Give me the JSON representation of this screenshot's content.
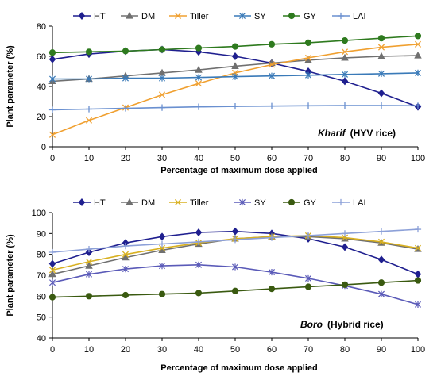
{
  "figure": {
    "colors": {
      "HT": "#1f1f8f",
      "DM": "#707070",
      "Tiller": "#f0a030",
      "SY": "#3a7ab8",
      "GY": "#2e7a1e",
      "LAI": "#6a90d0"
    },
    "colors_b": {
      "HT": "#1f1f8f",
      "DM": "#707070",
      "Tiller": "#d8b020",
      "SY": "#5a5ab8",
      "GY": "#3a5a10",
      "LAI": "#8ca0d8"
    }
  },
  "chart_data": [
    {
      "type": "line",
      "annotation_italic": "Kharif",
      "annotation_rest": "(HYV rice)",
      "xlabel": "Percentage  of maximum dose applied",
      "ylabel": "Plant parameter (%)",
      "x": [
        0,
        10,
        20,
        30,
        40,
        50,
        60,
        70,
        80,
        90,
        100
      ],
      "xticks": [
        "0",
        "10",
        "20",
        "30",
        "40",
        "50",
        "60",
        "70",
        "80",
        "90",
        "100"
      ],
      "ylim": [
        0,
        80
      ],
      "yticks": [
        "0",
        "20",
        "40",
        "60",
        "80"
      ],
      "grid": false,
      "legend_position": "top",
      "series": [
        {
          "name": "HT",
          "marker": "diamond",
          "values": [
            58,
            61.5,
            63.5,
            64.5,
            63,
            60,
            55.5,
            50,
            43.5,
            35.5,
            26.5
          ]
        },
        {
          "name": "DM",
          "marker": "triangle",
          "values": [
            43.5,
            45,
            47,
            49,
            51,
            53.5,
            55.5,
            57.5,
            59,
            60,
            60.5
          ]
        },
        {
          "name": "Tiller",
          "marker": "x",
          "values": [
            8,
            17.5,
            26,
            34.5,
            42,
            49,
            54.5,
            59,
            63,
            66,
            68
          ]
        },
        {
          "name": "SY",
          "marker": "asterisk",
          "values": [
            45,
            45,
            45.5,
            45.5,
            46,
            46.5,
            47,
            47.5,
            48,
            48.5,
            49
          ]
        },
        {
          "name": "GY",
          "marker": "circle",
          "values": [
            62.5,
            63,
            63.5,
            64.5,
            65.5,
            66.5,
            68,
            69,
            70.5,
            72,
            73.5
          ]
        },
        {
          "name": "LAI",
          "marker": "plus",
          "values": [
            24.5,
            25,
            25.5,
            26,
            26.5,
            26.8,
            27,
            27.2,
            27.3,
            27.3,
            27.2
          ]
        }
      ]
    },
    {
      "type": "line",
      "annotation_italic": "Boro",
      "annotation_rest": "(Hybrid rice)",
      "xlabel": "Percentage  of maximum dose applied",
      "ylabel": "Plant parameter (%)",
      "x": [
        0,
        10,
        20,
        30,
        40,
        50,
        60,
        70,
        80,
        90,
        100
      ],
      "xticks": [
        "0",
        "10",
        "20",
        "30",
        "40",
        "50",
        "60",
        "70",
        "80",
        "90",
        "100"
      ],
      "ylim": [
        40,
        100
      ],
      "yticks": [
        "40",
        "50",
        "60",
        "70",
        "80",
        "90",
        "100"
      ],
      "grid": false,
      "legend_position": "top",
      "series": [
        {
          "name": "HT",
          "marker": "diamond",
          "values": [
            75.5,
            81,
            85.5,
            88.5,
            90.5,
            91,
            90,
            87.5,
            83.5,
            77.5,
            70.5
          ]
        },
        {
          "name": "DM",
          "marker": "triangle",
          "values": [
            70.5,
            74.5,
            78.5,
            82,
            85,
            87.5,
            88.5,
            88.5,
            87.5,
            85.5,
            82.5
          ]
        },
        {
          "name": "Tiller",
          "marker": "x",
          "values": [
            72.5,
            76.5,
            80,
            83,
            85.5,
            87.5,
            88.5,
            89,
            88,
            86,
            83
          ]
        },
        {
          "name": "SY",
          "marker": "asterisk",
          "values": [
            66.5,
            70.5,
            73,
            74.5,
            75,
            74,
            71.5,
            68.5,
            65,
            61,
            56
          ]
        },
        {
          "name": "GY",
          "marker": "circle",
          "values": [
            59.5,
            60,
            60.5,
            61,
            61.5,
            62.5,
            63.5,
            64.5,
            65.5,
            66.5,
            67.5
          ]
        },
        {
          "name": "LAI",
          "marker": "plus",
          "values": [
            81,
            82.5,
            84,
            85,
            86,
            87,
            88,
            89,
            90,
            91,
            92
          ]
        }
      ]
    }
  ]
}
